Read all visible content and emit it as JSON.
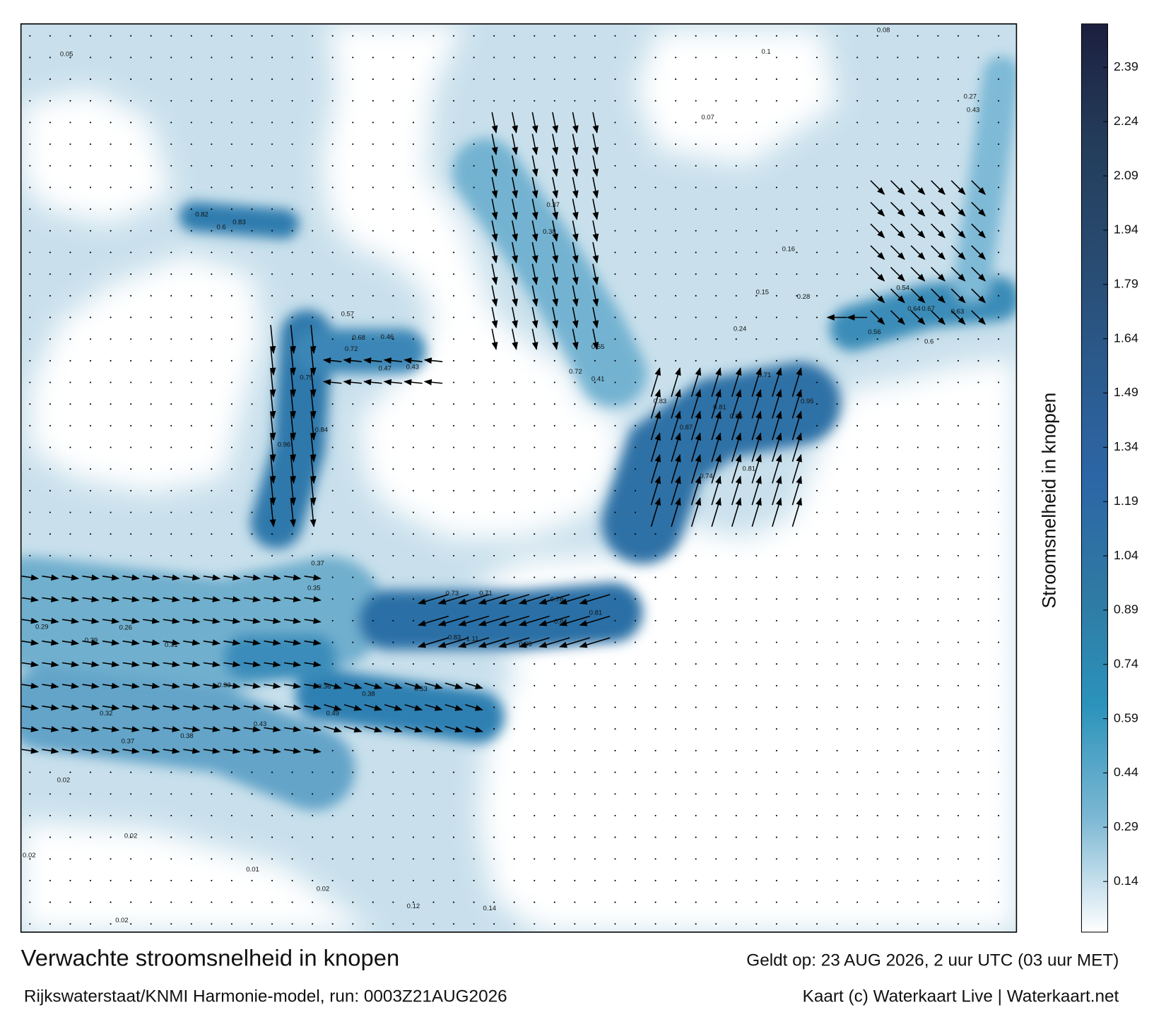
{
  "title": "Verwachte stroomsnelheid in knopen",
  "valid_time": "Geldt op: 23 AUG 2026, 2 uur UTC (03 uur MET)",
  "model_run": "Rijkswaterstaat/KNMI Harmonie-model, run: 0003Z21AUG2026",
  "credit": "Kaart (c) Waterkaart Live | Waterkaart.net",
  "colorbar": {
    "label": "Stroomsnelheid in knopen",
    "range": [
      0,
      2.51
    ],
    "ticks": [
      0.14,
      0.29,
      0.44,
      0.59,
      0.74,
      0.89,
      1.04,
      1.19,
      1.34,
      1.49,
      1.64,
      1.79,
      1.94,
      2.09,
      2.24,
      2.39
    ],
    "colors": [
      "#ffffff",
      "#7db8d4",
      "#2b93bb",
      "#2f79a3",
      "#2c66a6",
      "#2b5a8c",
      "#284a6f",
      "#233c5a",
      "#1c1f3e"
    ]
  },
  "current_labels": [
    0.83,
    0.81,
    0.86,
    0.87,
    0.74,
    0.81,
    0.95,
    0.71,
    0.72,
    0.41,
    0.84,
    0.75,
    0.96,
    0.84,
    0.81,
    0.83,
    1.11,
    0.85,
    0.71,
    0.78,
    0.73,
    0.37,
    0.35,
    0.31,
    0.26,
    0.29,
    0.29,
    0.32,
    0.37,
    0.36,
    0.38,
    0.53,
    0.49,
    0.6,
    0.64,
    0.67,
    0.63,
    0.27,
    0.43,
    0.16,
    0.15,
    0.28,
    0.24,
    0.65,
    0.37,
    0.38,
    0.56,
    0.54,
    0.83,
    0.6,
    0.82,
    0.47,
    0.43,
    0.72,
    0.68,
    0.57,
    0.46,
    0.05,
    0.02,
    0.01,
    0.02,
    0.12,
    0.14,
    0.08,
    0.07,
    0.1,
    0.02,
    0.02,
    0.02,
    0.33,
    0.38,
    0.43
  ]
}
